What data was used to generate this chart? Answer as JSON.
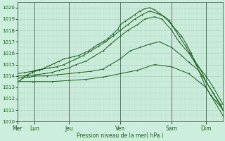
{
  "xlabel": "Pression niveau de la mer( hPa )",
  "ylim": [
    1010,
    1020.5
  ],
  "yticks": [
    1010,
    1011,
    1012,
    1013,
    1014,
    1015,
    1016,
    1017,
    1018,
    1019,
    1020
  ],
  "day_labels": [
    "Mer",
    "Lun",
    "Jeu",
    "Ven",
    "Sam",
    "Dim"
  ],
  "day_x": [
    0,
    7,
    21,
    42,
    63,
    77
  ],
  "xlim": [
    0,
    84
  ],
  "bg_color": "#cceedd",
  "grid_color": "#aaccbb",
  "line_color": "#1a5c1a",
  "lines": [
    {
      "x": [
        0,
        1,
        2,
        3,
        4,
        5,
        6,
        7,
        9,
        11,
        13,
        15,
        17,
        19,
        21,
        23,
        25,
        27,
        29,
        31,
        33,
        35,
        37,
        39,
        41,
        42,
        44,
        46,
        48,
        50,
        52,
        54,
        56,
        58,
        60,
        62,
        63,
        65,
        67,
        69,
        71,
        73,
        75,
        77,
        79,
        81,
        83,
        84
      ],
      "y": [
        1013.5,
        1013.6,
        1013.8,
        1014.0,
        1014.1,
        1014.2,
        1014.3,
        1014.4,
        1014.5,
        1014.7,
        1014.9,
        1015.1,
        1015.3,
        1015.5,
        1015.6,
        1015.7,
        1015.8,
        1016.0,
        1016.2,
        1016.5,
        1016.8,
        1017.0,
        1017.3,
        1017.7,
        1018.1,
        1018.5,
        1018.8,
        1019.1,
        1019.4,
        1019.7,
        1019.9,
        1020.0,
        1019.8,
        1019.5,
        1019.2,
        1018.9,
        1018.5,
        1018.0,
        1017.5,
        1016.8,
        1016.0,
        1015.0,
        1014.0,
        1013.0,
        1012.3,
        1011.8,
        1011.3,
        1011.0
      ]
    },
    {
      "x": [
        0,
        3,
        6,
        7,
        10,
        13,
        16,
        19,
        21,
        24,
        27,
        30,
        33,
        36,
        39,
        42,
        45,
        48,
        51,
        54,
        57,
        60,
        63,
        66,
        69,
        72,
        75,
        77,
        80,
        83,
        84
      ],
      "y": [
        1014.2,
        1014.3,
        1014.4,
        1014.5,
        1014.6,
        1014.7,
        1014.8,
        1015.0,
        1015.2,
        1015.5,
        1015.8,
        1016.2,
        1016.6,
        1017.0,
        1017.5,
        1018.0,
        1018.5,
        1019.0,
        1019.4,
        1019.7,
        1019.5,
        1019.2,
        1018.5,
        1017.5,
        1016.5,
        1015.5,
        1014.5,
        1013.5,
        1012.5,
        1011.5,
        1011.0
      ]
    },
    {
      "x": [
        0,
        4,
        7,
        11,
        14,
        17,
        21,
        24,
        28,
        31,
        35,
        38,
        42,
        45,
        49,
        52,
        56,
        59,
        63,
        66,
        70,
        73,
        77,
        80,
        84
      ],
      "y": [
        1014.0,
        1014.0,
        1014.1,
        1014.2,
        1014.3,
        1014.5,
        1014.7,
        1015.0,
        1015.3,
        1015.7,
        1016.2,
        1016.8,
        1017.5,
        1018.0,
        1018.5,
        1019.0,
        1019.2,
        1019.0,
        1018.0,
        1017.0,
        1016.0,
        1015.0,
        1014.0,
        1013.0,
        1011.5
      ]
    },
    {
      "x": [
        0,
        5,
        7,
        12,
        16,
        21,
        25,
        30,
        35,
        38,
        42,
        46,
        50,
        54,
        58,
        63,
        67,
        70,
        74,
        77,
        80,
        84
      ],
      "y": [
        1013.8,
        1013.9,
        1014.0,
        1014.0,
        1014.1,
        1014.2,
        1014.3,
        1014.4,
        1014.6,
        1015.0,
        1015.5,
        1016.2,
        1016.5,
        1016.8,
        1017.0,
        1016.5,
        1015.8,
        1015.2,
        1014.5,
        1013.5,
        1012.5,
        1011.0
      ]
    },
    {
      "x": [
        0,
        6,
        7,
        14,
        21,
        28,
        35,
        42,
        49,
        56,
        63,
        70,
        77,
        84
      ],
      "y": [
        1013.5,
        1013.5,
        1013.5,
        1013.5,
        1013.6,
        1013.7,
        1013.9,
        1014.2,
        1014.5,
        1015.0,
        1014.8,
        1014.2,
        1013.0,
        1010.5
      ]
    }
  ]
}
